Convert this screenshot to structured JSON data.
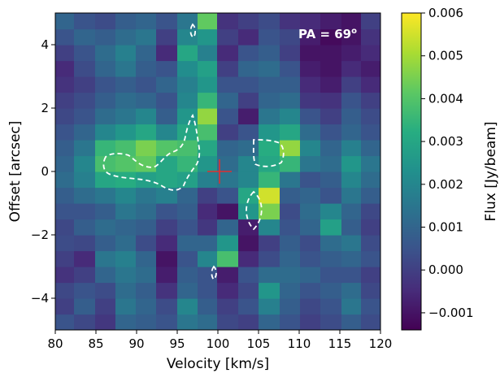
{
  "chart_data": {
    "type": "heatmap",
    "colormap": "viridis",
    "annotation": {
      "text": "PA = 69",
      "superscript": "o",
      "color": "#ffffff"
    },
    "xlabel": "Velocity [km/s]",
    "ylabel": "Offset [arcsec]",
    "colorbar_label": "Flux [Jy/beam]",
    "xlim": [
      80,
      120
    ],
    "ylim": [
      -5,
      5
    ],
    "x_ticks": [
      80,
      85,
      90,
      95,
      100,
      105,
      110,
      115,
      120
    ],
    "x_tick_labels": [
      "80",
      "85",
      "90",
      "95",
      "100",
      "105",
      "110",
      "115",
      "120"
    ],
    "y_ticks": [
      -4,
      -2,
      0,
      2,
      4
    ],
    "y_tick_labels": [
      "−4",
      "−2",
      "0",
      "2",
      "4"
    ],
    "clim": [
      -0.0014,
      0.006
    ],
    "colorbar_ticks": [
      -0.001,
      0,
      0.001,
      0.002,
      0.003,
      0.004,
      0.005,
      0.006
    ],
    "colorbar_tick_labels": [
      "−0.001",
      "0.000",
      "0.001",
      "0.002",
      "0.003",
      "0.004",
      "0.005",
      "0.006"
    ],
    "center_marker": {
      "x": 100.2,
      "y": 0,
      "color": "#e03030"
    },
    "x_edges": [
      80,
      82.3,
      84.9,
      87.4,
      89.9,
      92.4,
      95.0,
      97.5,
      99.9,
      102.5,
      105.0,
      107.6,
      110.1,
      112.6,
      115.2,
      117.6,
      120
    ],
    "y_edges": [
      -5,
      -4.5,
      -4.0,
      -3.5,
      -3.0,
      -2.5,
      -2.0,
      -1.5,
      -1.0,
      -0.5,
      0,
      0.5,
      1.0,
      1.5,
      2.0,
      2.5,
      3.0,
      3.5,
      4.0,
      4.5,
      5
    ],
    "values": [
      [
        0.0005,
        0.0002,
        -0.0002,
        0.001,
        0.0008,
        0.0005,
        0.0015,
        0.0012,
        0.0002,
        0.0,
        0.001,
        0.0005,
        0.0,
        0.0003,
        0.0008,
        0.0003
      ],
      [
        0.0,
        0.0008,
        0.0,
        0.0015,
        0.001,
        0.0003,
        0.002,
        0.0008,
        0.0,
        0.0005,
        0.0018,
        0.0008,
        0.0002,
        0.0005,
        0.0015,
        0.0005
      ],
      [
        0.0002,
        0.0005,
        0.0003,
        0.0012,
        0.0008,
        -0.0003,
        0.001,
        0.0005,
        -0.0005,
        0.0002,
        0.0025,
        0.001,
        0.0005,
        0.0008,
        0.0012,
        0.0002
      ],
      [
        -0.0003,
        0.0,
        0.001,
        0.0015,
        0.0012,
        -0.0008,
        0.0008,
        0.0005,
        -0.0008,
        0.0005,
        0.0012,
        0.0012,
        0.001,
        0.0005,
        0.0005,
        0.0
      ],
      [
        0.0,
        -0.0005,
        0.0015,
        0.0018,
        0.001,
        -0.001,
        0.0005,
        0.002,
        0.0038,
        -0.0005,
        0.0003,
        0.001,
        0.0005,
        0.0008,
        0.001,
        0.0005
      ],
      [
        0.0003,
        0.0002,
        0.0008,
        0.0012,
        0.0003,
        -0.0005,
        0.001,
        0.001,
        0.0025,
        -0.001,
        0.0,
        0.0008,
        0.0003,
        0.0012,
        0.0015,
        0.0003
      ],
      [
        0.0002,
        0.0008,
        0.0012,
        0.001,
        0.0008,
        0.0,
        0.0005,
        -0.0002,
        0.001,
        -0.0008,
        0.002,
        0.0005,
        0.001,
        0.0028,
        0.0008,
        0.0
      ],
      [
        0.0005,
        0.0005,
        0.0008,
        0.0015,
        0.0012,
        0.0005,
        0.0008,
        -0.0005,
        -0.001,
        0.0025,
        0.0045,
        0.0003,
        0.0012,
        0.002,
        0.001,
        0.0002
      ],
      [
        0.0008,
        0.0012,
        0.0015,
        0.002,
        0.0015,
        0.0018,
        0.001,
        0.0,
        0.0005,
        0.003,
        0.0055,
        0.0008,
        0.001,
        0.0005,
        0.0015,
        0.0008
      ],
      [
        0.0012,
        0.0018,
        0.003,
        0.0032,
        0.0028,
        0.003,
        0.0028,
        0.0018,
        0.0015,
        0.002,
        0.0035,
        0.0015,
        0.0005,
        0.0008,
        0.002,
        0.0012
      ],
      [
        0.001,
        0.002,
        0.0038,
        0.004,
        0.0042,
        0.003,
        0.0035,
        0.0025,
        0.0012,
        0.002,
        0.003,
        0.0035,
        0.0015,
        0.0012,
        0.0025,
        0.0015
      ],
      [
        0.0008,
        0.0015,
        0.0035,
        0.0038,
        0.0045,
        0.004,
        0.0038,
        0.003,
        0.001,
        0.0012,
        0.0032,
        0.0048,
        0.002,
        0.001,
        0.0018,
        0.001
      ],
      [
        0.0005,
        0.001,
        0.002,
        0.0025,
        0.003,
        0.002,
        0.003,
        0.0038,
        0.0,
        0.0005,
        0.0025,
        0.003,
        0.0012,
        0.0005,
        0.001,
        0.0005
      ],
      [
        0.0002,
        0.0005,
        0.0012,
        0.0015,
        0.002,
        0.0008,
        0.0025,
        0.0048,
        0.0005,
        -0.0008,
        0.0015,
        0.002,
        0.0005,
        0.0,
        0.0008,
        0.0003
      ],
      [
        0.0,
        0.0003,
        0.0008,
        0.0012,
        0.001,
        0.0005,
        0.002,
        0.0035,
        0.001,
        0.0,
        0.001,
        0.0012,
        -0.0002,
        -0.0003,
        0.0005,
        0.0
      ],
      [
        -0.0003,
        0.0,
        0.0005,
        0.0008,
        0.0005,
        0.001,
        0.0018,
        0.0025,
        0.0005,
        0.0005,
        0.0008,
        0.0008,
        -0.0005,
        -0.0008,
        0.0,
        -0.0005
      ],
      [
        -0.0005,
        0.0003,
        0.001,
        0.0015,
        0.0008,
        0.0005,
        0.0022,
        0.0028,
        0.0,
        0.001,
        0.0012,
        0.0005,
        -0.0008,
        -0.001,
        -0.0005,
        -0.0008
      ],
      [
        0.0,
        0.0005,
        0.0012,
        0.0018,
        0.001,
        -0.0005,
        0.003,
        0.0018,
        -0.0005,
        0.0005,
        0.0008,
        0.0,
        -0.001,
        -0.001,
        -0.0008,
        -0.0005
      ],
      [
        0.0005,
        0.001,
        0.0008,
        0.0012,
        0.0015,
        0.0,
        0.002,
        0.0025,
        0.0,
        -0.0005,
        0.0005,
        0.0002,
        -0.0008,
        -0.0012,
        -0.001,
        -0.0003
      ],
      [
        0.001,
        0.0005,
        0.0003,
        0.0008,
        0.001,
        0.0005,
        0.0015,
        0.0042,
        -0.0003,
        0.0,
        0.0003,
        -0.0003,
        -0.0005,
        -0.0008,
        -0.001,
        0.0
      ]
    ]
  }
}
